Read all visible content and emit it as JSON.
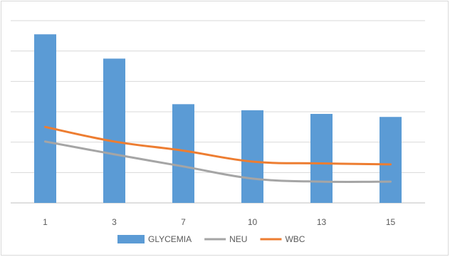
{
  "chart_data": {
    "type": "bar",
    "title": "",
    "xlabel": "",
    "ylabel": "",
    "categories": [
      "1",
      "3",
      "7",
      "10",
      "13",
      "15"
    ],
    "ylim": [
      0,
      6
    ],
    "y_ticks_count": 7,
    "y_tick_labels_visible": false,
    "grid": true,
    "legend_position": "bottom",
    "series": [
      {
        "name": "GLYCEMIA",
        "kind": "bar",
        "color": "#5b9bd5",
        "values": [
          5.55,
          4.75,
          3.25,
          3.05,
          2.93,
          2.83
        ]
      },
      {
        "name": "NEU",
        "kind": "line",
        "color": "#a5a5a5",
        "values": [
          2.02,
          1.6,
          1.2,
          0.8,
          0.7,
          0.7
        ]
      },
      {
        "name": "WBC",
        "kind": "line",
        "color": "#ed7d31",
        "values": [
          2.5,
          2.02,
          1.72,
          1.36,
          1.3,
          1.27
        ]
      }
    ]
  }
}
